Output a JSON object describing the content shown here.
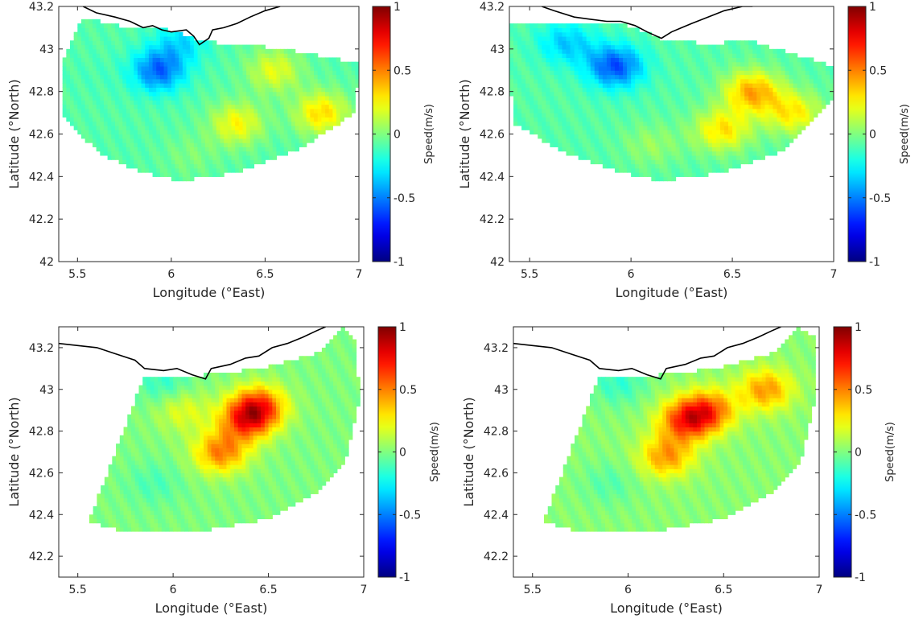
{
  "figure": {
    "xlabel": "Longitude (°East)",
    "ylabel": "Latitude (°North)",
    "colorbar_label": "Speed(m/s)",
    "colorbar_ticks": [
      "1",
      "0.5",
      "0",
      "-0.5",
      "-1"
    ],
    "colormap": [
      "#00008f",
      "#0000ff",
      "#00ffff",
      "#ffff00",
      "#ff0000",
      "#800000"
    ]
  },
  "chart_data": [
    {
      "type": "heatmap",
      "title": "",
      "xlabel": "Longitude (°East)",
      "ylabel": "Latitude (°North)",
      "xlim": [
        5.4,
        7.0
      ],
      "ylim": [
        42.0,
        43.2
      ],
      "xticks": [
        "5.5",
        "6",
        "6.5",
        "7"
      ],
      "yticks": [
        "42",
        "42.2",
        "42.4",
        "42.6",
        "42.8",
        "43",
        "43.2"
      ],
      "colorbar": {
        "label": "Speed(m/s)",
        "range": [
          -1,
          1
        ]
      },
      "coverage_polygon": [
        [
          5.53,
          43.15
        ],
        [
          5.66,
          43.12
        ],
        [
          5.78,
          43.1
        ],
        [
          5.95,
          43.1
        ],
        [
          6.12,
          43.05
        ],
        [
          6.3,
          43.02
        ],
        [
          6.5,
          43.01
        ],
        [
          6.73,
          42.98
        ],
        [
          7.0,
          42.93
        ],
        [
          6.98,
          42.7
        ],
        [
          6.68,
          42.53
        ],
        [
          6.35,
          42.42
        ],
        [
          6.05,
          42.38
        ],
        [
          5.85,
          42.42
        ],
        [
          5.63,
          42.5
        ],
        [
          5.42,
          42.68
        ],
        [
          5.42,
          42.95
        ]
      ],
      "speed_features": [
        {
          "lon": 5.93,
          "lat": 42.9,
          "speed": -0.55
        },
        {
          "lon": 6.05,
          "lat": 43.03,
          "speed": -0.3
        },
        {
          "lon": 5.6,
          "lat": 42.88,
          "speed": -0.1
        },
        {
          "lon": 6.8,
          "lat": 42.7,
          "speed": 0.32
        },
        {
          "lon": 6.55,
          "lat": 42.9,
          "speed": 0.2
        },
        {
          "lon": 6.35,
          "lat": 42.65,
          "speed": 0.25
        },
        {
          "lon": 6.1,
          "lat": 42.5,
          "speed": 0.0
        }
      ],
      "background_speed": -0.08
    },
    {
      "type": "heatmap",
      "title": "",
      "xlabel": "Longitude (°East)",
      "ylabel": "Latitude (°North)",
      "xlim": [
        5.4,
        7.0
      ],
      "ylim": [
        42.0,
        43.2
      ],
      "xticks": [
        "5.5",
        "6",
        "6.5",
        "7"
      ],
      "yticks": [
        "42",
        "42.2",
        "42.4",
        "42.6",
        "42.8",
        "43",
        "43.2"
      ],
      "colorbar": {
        "label": "Speed(m/s)",
        "range": [
          -1,
          1
        ]
      },
      "coverage_polygon": [
        [
          5.4,
          43.12
        ],
        [
          5.6,
          43.13
        ],
        [
          5.8,
          43.12
        ],
        [
          5.95,
          43.12
        ],
        [
          6.15,
          43.05
        ],
        [
          6.4,
          43.02
        ],
        [
          6.55,
          43.05
        ],
        [
          7.0,
          42.92
        ],
        [
          7.0,
          42.76
        ],
        [
          6.75,
          42.52
        ],
        [
          6.45,
          42.42
        ],
        [
          6.15,
          42.38
        ],
        [
          5.95,
          42.42
        ],
        [
          5.7,
          42.5
        ],
        [
          5.42,
          42.65
        ],
        [
          5.4,
          42.9
        ]
      ],
      "speed_features": [
        {
          "lon": 5.92,
          "lat": 42.92,
          "speed": -0.6
        },
        {
          "lon": 5.68,
          "lat": 43.03,
          "speed": -0.35
        },
        {
          "lon": 6.6,
          "lat": 42.8,
          "speed": 0.42
        },
        {
          "lon": 6.8,
          "lat": 42.7,
          "speed": 0.28
        },
        {
          "lon": 6.45,
          "lat": 42.62,
          "speed": 0.3
        },
        {
          "lon": 6.1,
          "lat": 42.55,
          "speed": 0.05
        }
      ],
      "background_speed": -0.08
    },
    {
      "type": "heatmap",
      "title": "",
      "xlabel": "Longitude (°East)",
      "ylabel": "Latitude (°North)",
      "xlim": [
        5.4,
        7.0
      ],
      "ylim": [
        42.1,
        43.3
      ],
      "xticks": [
        "5.5",
        "6",
        "6.5",
        "7"
      ],
      "yticks": [
        "42.2",
        "42.4",
        "42.6",
        "42.8",
        "43",
        "43.2"
      ],
      "colorbar": {
        "label": "Speed(m/s)",
        "range": [
          -1,
          1
        ]
      },
      "coverage_polygon": [
        [
          5.56,
          42.37
        ],
        [
          5.85,
          43.07
        ],
        [
          6.15,
          43.07
        ],
        [
          6.45,
          43.1
        ],
        [
          6.78,
          43.18
        ],
        [
          6.88,
          43.3
        ],
        [
          6.95,
          43.25
        ],
        [
          6.98,
          42.95
        ],
        [
          6.9,
          42.65
        ],
        [
          6.75,
          42.5
        ],
        [
          6.5,
          42.38
        ],
        [
          6.2,
          42.33
        ],
        [
          5.9,
          42.32
        ],
        [
          5.7,
          42.33
        ]
      ],
      "speed_features": [
        {
          "lon": 6.38,
          "lat": 42.85,
          "speed": 0.55
        },
        {
          "lon": 6.45,
          "lat": 42.92,
          "speed": 0.6
        },
        {
          "lon": 6.25,
          "lat": 42.7,
          "speed": 0.5
        },
        {
          "lon": 6.05,
          "lat": 42.9,
          "speed": 0.2
        },
        {
          "lon": 5.95,
          "lat": 43.03,
          "speed": -0.15
        },
        {
          "lon": 5.9,
          "lat": 42.55,
          "speed": -0.1
        }
      ],
      "background_speed": 0.0
    },
    {
      "type": "heatmap",
      "title": "",
      "xlabel": "Longitude (°East)",
      "ylabel": "Latitude (°North)",
      "xlim": [
        5.4,
        7.0
      ],
      "ylim": [
        42.1,
        43.3
      ],
      "xticks": [
        "5.5",
        "6",
        "6.5",
        "7"
      ],
      "yticks": [
        "42.2",
        "42.4",
        "42.6",
        "42.8",
        "43",
        "43.2"
      ],
      "colorbar": {
        "label": "Speed(m/s)",
        "range": [
          -1,
          1
        ]
      },
      "coverage_polygon": [
        [
          5.56,
          42.37
        ],
        [
          5.85,
          43.07
        ],
        [
          6.15,
          43.07
        ],
        [
          6.45,
          43.1
        ],
        [
          6.78,
          43.18
        ],
        [
          6.88,
          43.3
        ],
        [
          6.98,
          43.25
        ],
        [
          6.98,
          42.95
        ],
        [
          6.9,
          42.65
        ],
        [
          6.75,
          42.5
        ],
        [
          6.5,
          42.38
        ],
        [
          6.2,
          42.33
        ],
        [
          5.9,
          42.32
        ],
        [
          5.7,
          42.33
        ]
      ],
      "speed_features": [
        {
          "lon": 6.3,
          "lat": 42.85,
          "speed": 0.6
        },
        {
          "lon": 6.42,
          "lat": 42.9,
          "speed": 0.55
        },
        {
          "lon": 6.72,
          "lat": 43.0,
          "speed": 0.45
        },
        {
          "lon": 6.2,
          "lat": 42.68,
          "speed": 0.45
        },
        {
          "lon": 5.95,
          "lat": 43.03,
          "speed": -0.15
        },
        {
          "lon": 5.9,
          "lat": 42.55,
          "speed": -0.08
        }
      ],
      "background_speed": 0.02
    }
  ]
}
